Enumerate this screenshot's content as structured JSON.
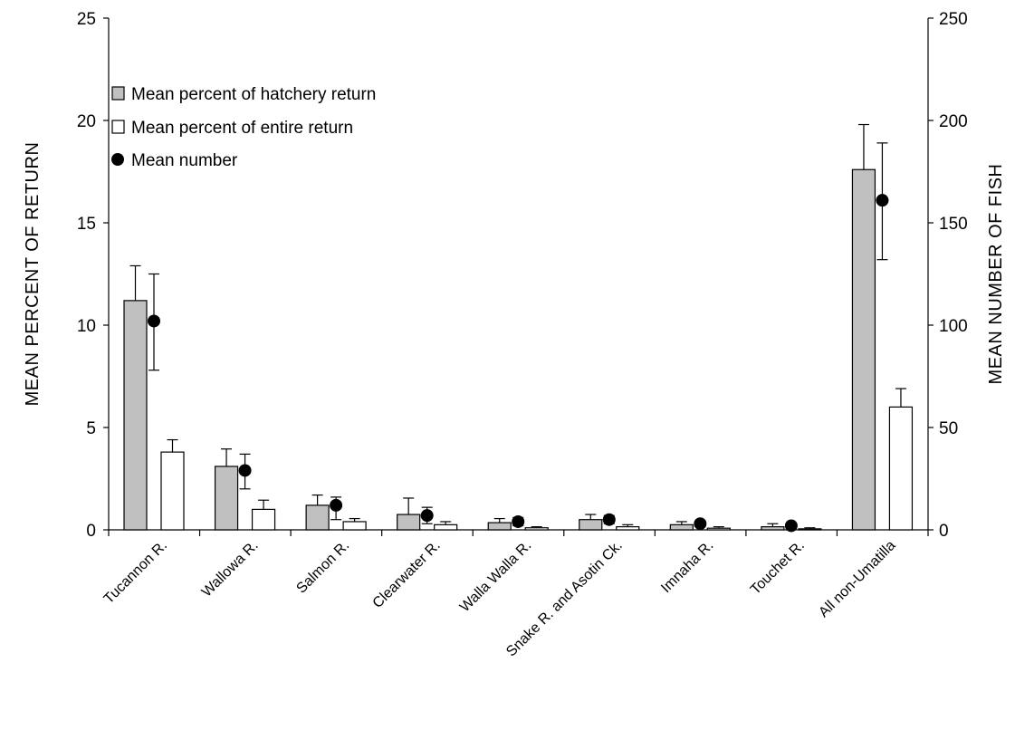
{
  "chart_data": {
    "type": "bar",
    "categories": [
      "Tucannon R.",
      "Wallowa R.",
      "Salmon R.",
      "Clearwater R.",
      "Walla Walla R.",
      "Snake R. and Asotin Ck.",
      "Imnaha R.",
      "Touchet R.",
      "All non-Umatilla"
    ],
    "series": [
      {
        "name": "Mean percent of hatchery return",
        "axis": "left",
        "color": "#c0c0c0",
        "values": [
          11.2,
          3.1,
          1.2,
          0.75,
          0.35,
          0.5,
          0.25,
          0.15,
          17.6
        ],
        "error_upper": [
          12.9,
          3.95,
          1.7,
          1.55,
          0.55,
          0.75,
          0.4,
          0.3,
          19.8
        ]
      },
      {
        "name": "Mean percent of entire return",
        "axis": "left",
        "color": "#ffffff",
        "values": [
          3.8,
          1.0,
          0.4,
          0.25,
          0.1,
          0.15,
          0.08,
          0.05,
          6.0
        ],
        "error_upper": [
          4.4,
          1.45,
          0.55,
          0.4,
          0.15,
          0.25,
          0.15,
          0.1,
          6.9
        ]
      },
      {
        "name": "Mean number",
        "axis": "right",
        "marker": "circle",
        "color": "#000000",
        "values": [
          102,
          29,
          12,
          7,
          4,
          5,
          3,
          2,
          161
        ],
        "error_lower": [
          78,
          20,
          5,
          3,
          2,
          3,
          2,
          1,
          132
        ],
        "error_upper": [
          125,
          37,
          16,
          11,
          6,
          7,
          4,
          3,
          189
        ]
      }
    ],
    "y_left": {
      "label": "MEAN PERCENT OF RETURN",
      "ylim": [
        0,
        25
      ],
      "ticks": [
        "0",
        "5",
        "10",
        "15",
        "20",
        "25"
      ]
    },
    "y_right": {
      "label": "MEAN NUMBER OF FISH",
      "ylim": [
        0,
        250
      ],
      "ticks": [
        "0",
        "50",
        "100",
        "150",
        "200",
        "250"
      ]
    },
    "legend_position": "top-left",
    "grid": false
  }
}
